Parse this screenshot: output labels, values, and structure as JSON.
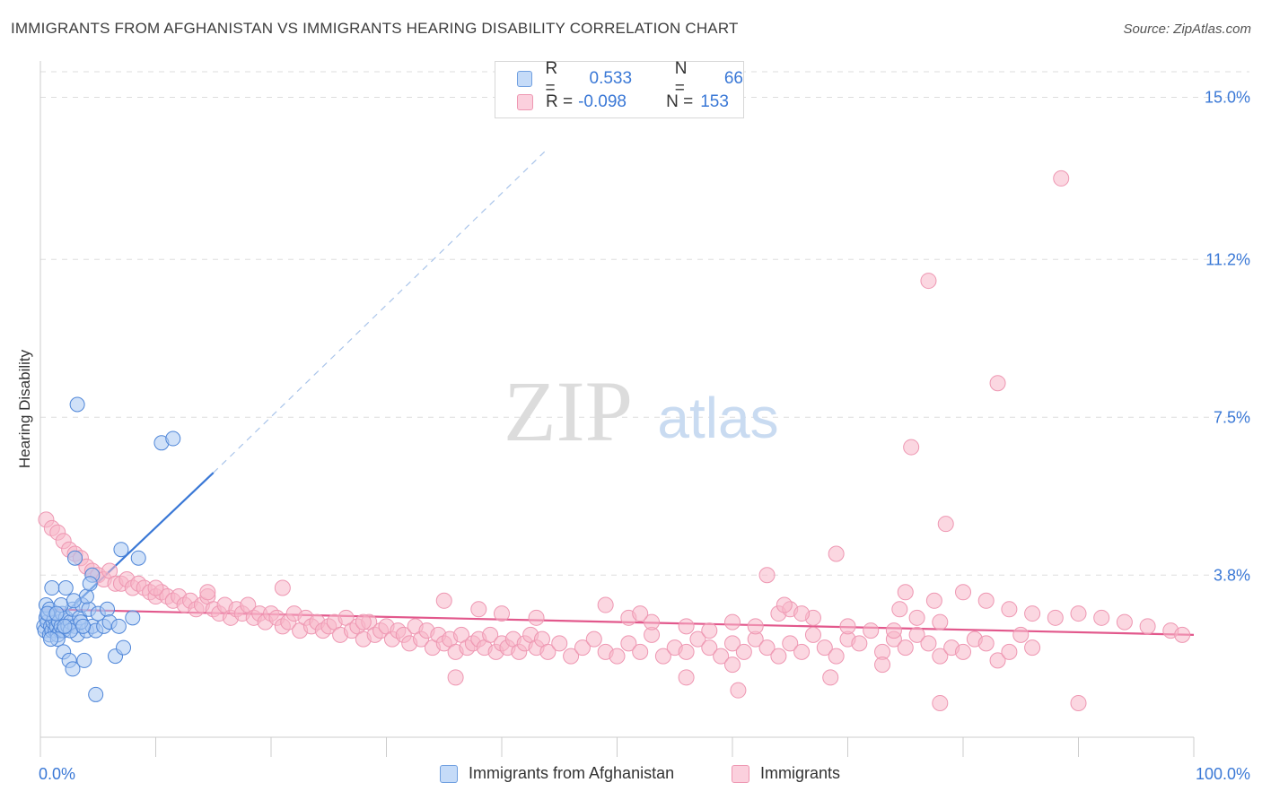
{
  "header": {
    "title": "IMMIGRANTS FROM AFGHANISTAN VS IMMIGRANTS HEARING DISABILITY CORRELATION CHART",
    "source": "Source: ZipAtlas.com"
  },
  "watermark": {
    "zip": "ZIP",
    "atlas": "atlas"
  },
  "legend": {
    "rows": [
      {
        "r_label": "R =",
        "r_value": "0.533",
        "n_label": "N =",
        "n_value": "66",
        "color": "#a9c8f3"
      },
      {
        "r_label": "R =",
        "r_value": "-0.098",
        "n_label": "N =",
        "n_value": "153",
        "color": "#f7b6c9"
      }
    ]
  },
  "bottom_legend": {
    "series1": "Immigrants from Afghanistan",
    "series2": "Immigrants"
  },
  "chart_data": {
    "type": "scatter",
    "title": "IMMIGRANTS FROM AFGHANISTAN VS IMMIGRANTS HEARING DISABILITY CORRELATION CHART",
    "xlabel": "",
    "ylabel": "Hearing Disability",
    "xlim": [
      0,
      100
    ],
    "ylim": [
      0,
      15.6
    ],
    "x_tick_labels": [
      "0.0%",
      "100.0%"
    ],
    "y_ticks": [
      3.8,
      7.5,
      11.2,
      15.0
    ],
    "y_tick_labels": [
      "3.8%",
      "7.5%",
      "11.2%",
      "15.0%"
    ],
    "grid": true,
    "series": [
      {
        "name": "Immigrants from Afghanistan",
        "color": "#3a78d6",
        "fill": "#a9c8f3",
        "trend": {
          "x0": 0.2,
          "y0": 2.4,
          "x1": 15,
          "y1": 6.2,
          "dash_to_x": 44,
          "dash_to_y": 13.8
        },
        "points": [
          [
            0.3,
            2.6
          ],
          [
            0.4,
            2.5
          ],
          [
            0.5,
            2.8
          ],
          [
            0.6,
            2.7
          ],
          [
            0.7,
            2.9
          ],
          [
            0.8,
            2.4
          ],
          [
            0.9,
            2.6
          ],
          [
            1.0,
            2.5
          ],
          [
            1.1,
            2.7
          ],
          [
            1.2,
            2.8
          ],
          [
            1.3,
            2.5
          ],
          [
            1.4,
            2.6
          ],
          [
            1.5,
            2.4
          ],
          [
            1.6,
            2.7
          ],
          [
            1.7,
            2.5
          ],
          [
            1.8,
            2.6
          ],
          [
            1.9,
            2.9
          ],
          [
            2.0,
            2.5
          ],
          [
            2.2,
            2.8
          ],
          [
            2.4,
            2.6
          ],
          [
            2.6,
            2.7
          ],
          [
            2.8,
            3.0
          ],
          [
            3.0,
            2.6
          ],
          [
            3.2,
            2.4
          ],
          [
            3.4,
            2.8
          ],
          [
            3.6,
            3.1
          ],
          [
            4.0,
            2.5
          ],
          [
            4.2,
            3.0
          ],
          [
            4.5,
            2.6
          ],
          [
            5.0,
            2.9
          ],
          [
            0.5,
            3.1
          ],
          [
            0.8,
            3.0
          ],
          [
            1.0,
            3.5
          ],
          [
            1.5,
            2.3
          ],
          [
            2.0,
            2.0
          ],
          [
            2.2,
            3.5
          ],
          [
            2.5,
            1.8
          ],
          [
            2.8,
            1.6
          ],
          [
            3.0,
            4.2
          ],
          [
            3.5,
            2.7
          ],
          [
            3.8,
            1.8
          ],
          [
            4.0,
            3.3
          ],
          [
            4.5,
            3.8
          ],
          [
            4.8,
            2.5
          ],
          [
            5.5,
            2.6
          ],
          [
            5.8,
            3.0
          ],
          [
            6.0,
            2.7
          ],
          [
            6.5,
            1.9
          ],
          [
            7.0,
            4.4
          ],
          [
            7.2,
            2.1
          ],
          [
            3.2,
            7.8
          ],
          [
            10.5,
            6.9
          ],
          [
            11.5,
            7.0
          ],
          [
            4.8,
            1.0
          ],
          [
            8.0,
            2.8
          ],
          [
            8.5,
            4.2
          ],
          [
            0.6,
            2.9
          ],
          [
            1.8,
            3.1
          ],
          [
            2.6,
            2.5
          ],
          [
            3.7,
            2.6
          ],
          [
            4.3,
            3.6
          ],
          [
            0.9,
            2.3
          ],
          [
            1.4,
            2.9
          ],
          [
            2.1,
            2.6
          ],
          [
            2.9,
            3.2
          ],
          [
            6.8,
            2.6
          ]
        ]
      },
      {
        "name": "Immigrants",
        "color": "#e2588c",
        "fill": "#f7b6c9",
        "trend": {
          "x0": 0.2,
          "y0": 3.0,
          "x1": 100,
          "y1": 2.4
        },
        "points": [
          [
            0.5,
            5.1
          ],
          [
            1.0,
            4.9
          ],
          [
            1.5,
            4.8
          ],
          [
            2.0,
            4.6
          ],
          [
            2.5,
            4.4
          ],
          [
            3.0,
            4.3
          ],
          [
            3.5,
            4.2
          ],
          [
            4.0,
            4.0
          ],
          [
            4.5,
            3.9
          ],
          [
            5.0,
            3.8
          ],
          [
            5.5,
            3.7
          ],
          [
            6.0,
            3.9
          ],
          [
            6.5,
            3.6
          ],
          [
            7.0,
            3.6
          ],
          [
            7.5,
            3.7
          ],
          [
            8.0,
            3.5
          ],
          [
            8.5,
            3.6
          ],
          [
            9.0,
            3.5
          ],
          [
            9.5,
            3.4
          ],
          [
            10.0,
            3.3
          ],
          [
            10.5,
            3.4
          ],
          [
            11.0,
            3.3
          ],
          [
            11.5,
            3.2
          ],
          [
            12.0,
            3.3
          ],
          [
            12.5,
            3.1
          ],
          [
            13.0,
            3.2
          ],
          [
            13.5,
            3.0
          ],
          [
            14.0,
            3.1
          ],
          [
            14.5,
            3.3
          ],
          [
            15.0,
            3.0
          ],
          [
            15.5,
            2.9
          ],
          [
            16.0,
            3.1
          ],
          [
            16.5,
            2.8
          ],
          [
            17.0,
            3.0
          ],
          [
            17.5,
            2.9
          ],
          [
            18.0,
            3.1
          ],
          [
            18.5,
            2.8
          ],
          [
            19.0,
            2.9
          ],
          [
            19.5,
            2.7
          ],
          [
            20.0,
            2.9
          ],
          [
            20.5,
            2.8
          ],
          [
            21.0,
            2.6
          ],
          [
            21.5,
            2.7
          ],
          [
            22.0,
            2.9
          ],
          [
            22.5,
            2.5
          ],
          [
            23.0,
            2.8
          ],
          [
            23.5,
            2.6
          ],
          [
            24.0,
            2.7
          ],
          [
            24.5,
            2.5
          ],
          [
            25.0,
            2.6
          ],
          [
            25.5,
            2.7
          ],
          [
            26.0,
            2.4
          ],
          [
            26.5,
            2.8
          ],
          [
            27.0,
            2.5
          ],
          [
            27.5,
            2.6
          ],
          [
            28.0,
            2.3
          ],
          [
            28.5,
            2.7
          ],
          [
            29.0,
            2.4
          ],
          [
            29.5,
            2.5
          ],
          [
            30.0,
            2.6
          ],
          [
            30.5,
            2.3
          ],
          [
            31.0,
            2.5
          ],
          [
            31.5,
            2.4
          ],
          [
            32.0,
            2.2
          ],
          [
            32.5,
            2.6
          ],
          [
            33.0,
            2.3
          ],
          [
            33.5,
            2.5
          ],
          [
            34.0,
            2.1
          ],
          [
            34.5,
            2.4
          ],
          [
            35.0,
            2.2
          ],
          [
            35.5,
            2.3
          ],
          [
            36.0,
            2.0
          ],
          [
            36.5,
            2.4
          ],
          [
            37.0,
            2.1
          ],
          [
            37.5,
            2.2
          ],
          [
            38.0,
            2.3
          ],
          [
            38.5,
            2.1
          ],
          [
            39.0,
            2.4
          ],
          [
            39.5,
            2.0
          ],
          [
            40.0,
            2.2
          ],
          [
            40.5,
            2.1
          ],
          [
            41.0,
            2.3
          ],
          [
            41.5,
            2.0
          ],
          [
            42.0,
            2.2
          ],
          [
            42.5,
            2.4
          ],
          [
            43.0,
            2.1
          ],
          [
            43.5,
            2.3
          ],
          [
            44.0,
            2.0
          ],
          [
            45.0,
            2.2
          ],
          [
            46.0,
            1.9
          ],
          [
            47.0,
            2.1
          ],
          [
            48.0,
            2.3
          ],
          [
            49.0,
            2.0
          ],
          [
            50.0,
            1.9
          ],
          [
            51.0,
            2.2
          ],
          [
            52.0,
            2.0
          ],
          [
            53.0,
            2.4
          ],
          [
            54.0,
            1.9
          ],
          [
            55.0,
            2.1
          ],
          [
            56.0,
            2.0
          ],
          [
            57.0,
            2.3
          ],
          [
            58.0,
            2.1
          ],
          [
            59.0,
            1.9
          ],
          [
            60.0,
            2.2
          ],
          [
            61.0,
            2.0
          ],
          [
            62.0,
            2.3
          ],
          [
            63.0,
            2.1
          ],
          [
            64.0,
            1.9
          ],
          [
            65.0,
            2.2
          ],
          [
            66.0,
            2.0
          ],
          [
            67.0,
            2.4
          ],
          [
            68.0,
            2.1
          ],
          [
            69.0,
            1.9
          ],
          [
            70.0,
            2.3
          ],
          [
            71.0,
            2.2
          ],
          [
            72.0,
            2.5
          ],
          [
            73.0,
            2.0
          ],
          [
            74.0,
            2.3
          ],
          [
            75.0,
            2.1
          ],
          [
            76.0,
            2.4
          ],
          [
            77.0,
            2.2
          ],
          [
            78.0,
            1.9
          ],
          [
            79.0,
            2.1
          ],
          [
            80.0,
            2.0
          ],
          [
            81.0,
            2.3
          ],
          [
            82.0,
            2.2
          ],
          [
            83.0,
            1.8
          ],
          [
            84.0,
            2.0
          ],
          [
            85.0,
            2.4
          ],
          [
            86.0,
            2.1
          ],
          [
            10.0,
            3.5
          ],
          [
            14.5,
            3.4
          ],
          [
            21.0,
            3.5
          ],
          [
            28.0,
            2.7
          ],
          [
            35.0,
            3.2
          ],
          [
            38.0,
            3.0
          ],
          [
            40.0,
            2.9
          ],
          [
            43.0,
            2.8
          ],
          [
            49.0,
            3.1
          ],
          [
            51.0,
            2.8
          ],
          [
            53.0,
            2.7
          ],
          [
            56.0,
            2.6
          ],
          [
            58.0,
            2.5
          ],
          [
            60.0,
            2.7
          ],
          [
            62.0,
            2.6
          ],
          [
            64.0,
            2.9
          ],
          [
            65.0,
            3.0
          ],
          [
            67.0,
            2.8
          ],
          [
            70.0,
            2.6
          ],
          [
            74.0,
            2.5
          ],
          [
            76.0,
            2.8
          ],
          [
            78.0,
            2.7
          ],
          [
            80.0,
            3.4
          ],
          [
            82.0,
            3.2
          ],
          [
            84.0,
            3.0
          ],
          [
            86.0,
            2.9
          ],
          [
            88.0,
            2.8
          ],
          [
            90.0,
            2.9
          ],
          [
            92.0,
            2.8
          ],
          [
            94.0,
            2.7
          ],
          [
            96.0,
            2.6
          ],
          [
            98.0,
            2.5
          ],
          [
            99.0,
            2.4
          ]
        ]
      }
    ],
    "outliers": [
      [
        88.5,
        13.1
      ],
      [
        77.0,
        10.7
      ],
      [
        83.0,
        8.3
      ],
      [
        75.5,
        6.8
      ],
      [
        78.5,
        5.0
      ],
      [
        69.0,
        4.3
      ],
      [
        63.0,
        3.8
      ],
      [
        75.0,
        3.4
      ],
      [
        77.5,
        3.2
      ],
      [
        64.5,
        3.1
      ],
      [
        74.5,
        3.0
      ],
      [
        66.0,
        2.9
      ],
      [
        52.0,
        2.9
      ],
      [
        36.0,
        1.4
      ],
      [
        56.0,
        1.4
      ],
      [
        60.0,
        1.7
      ],
      [
        60.5,
        1.1
      ],
      [
        68.5,
        1.4
      ],
      [
        73.0,
        1.7
      ],
      [
        78.0,
        0.8
      ],
      [
        90.0,
        0.8
      ]
    ]
  }
}
